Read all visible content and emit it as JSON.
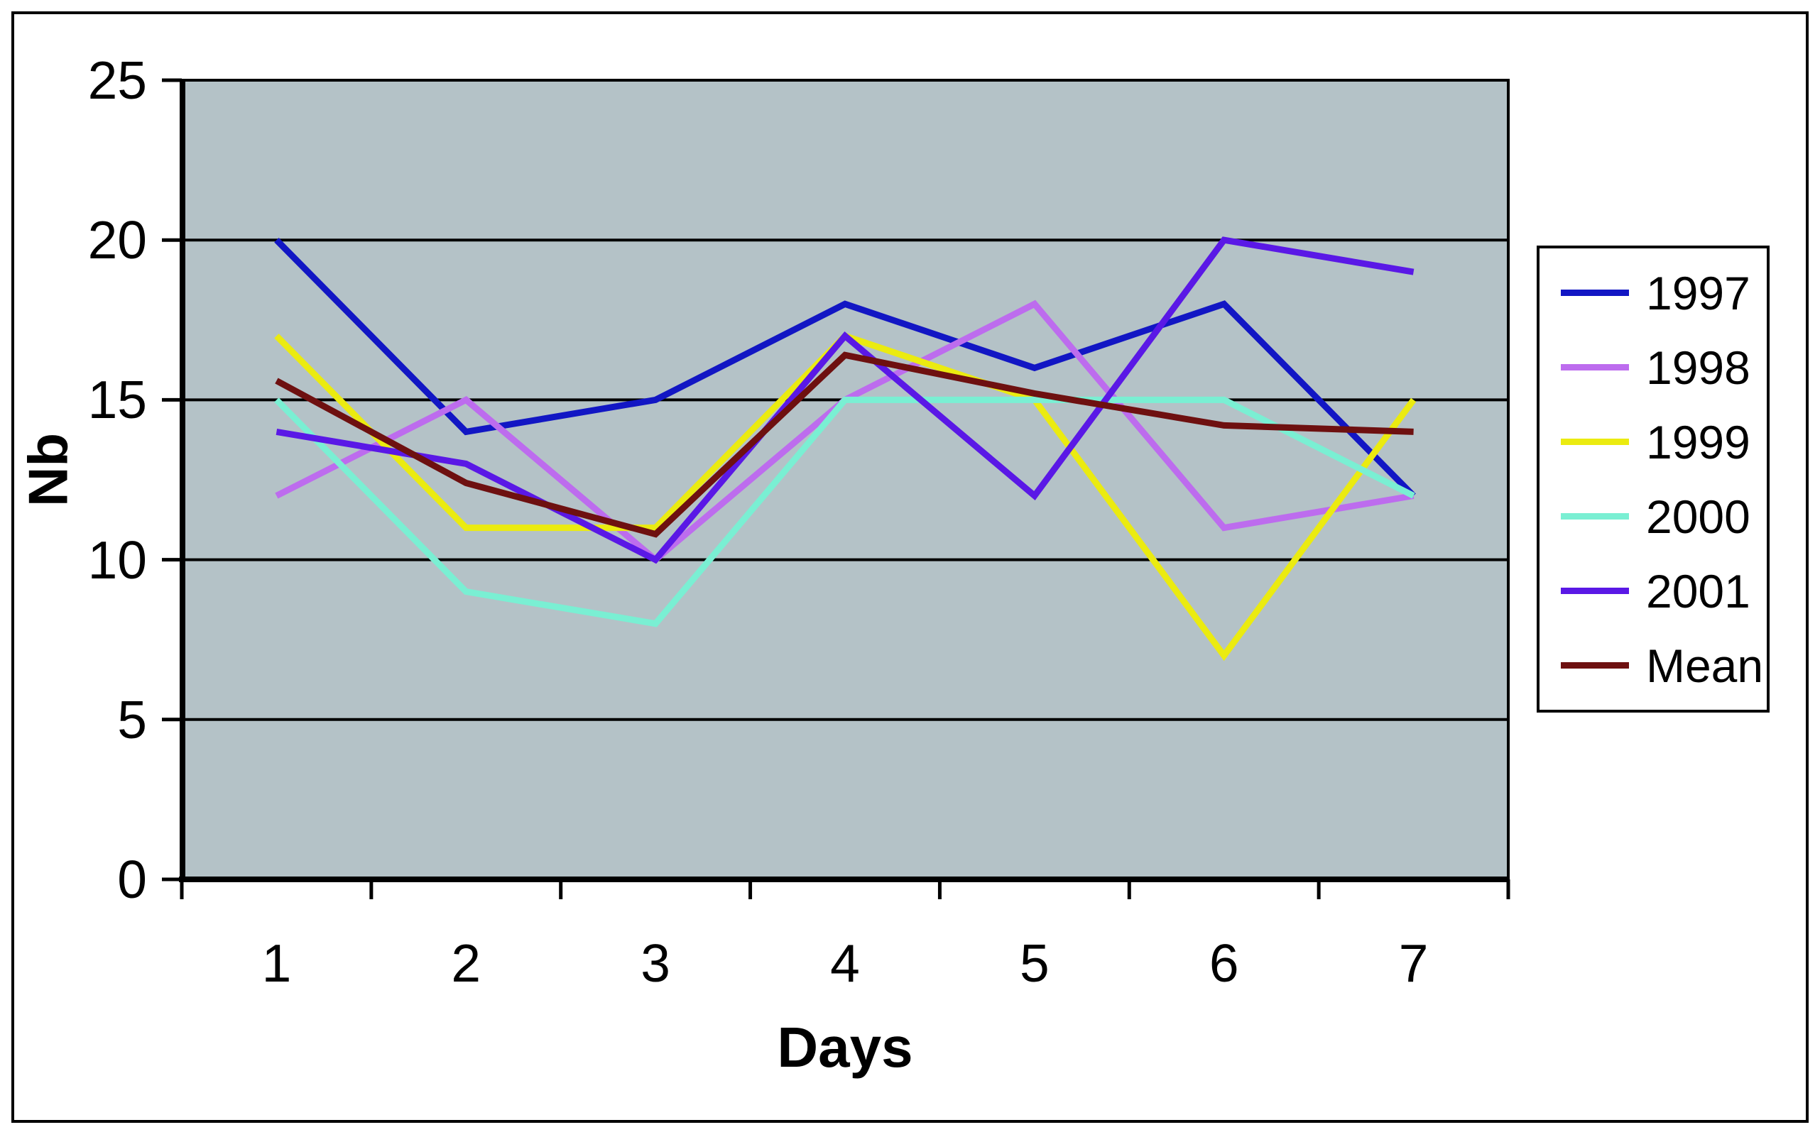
{
  "figure": {
    "background": "#ffffff",
    "border_color": "#000000"
  },
  "chart_data": {
    "type": "line",
    "title": "",
    "xlabel": "Days",
    "ylabel": "Nb",
    "x": [
      1,
      2,
      3,
      4,
      5,
      6,
      7
    ],
    "y_ticks": [
      0,
      5,
      10,
      15,
      20,
      25
    ],
    "ylim": [
      0,
      25
    ],
    "grid": "horizontal-only",
    "gridline_color": "#000000",
    "plot_background": "#b4c2c7",
    "legend_position": "right",
    "series": [
      {
        "name": "1997",
        "color": "#1216c4",
        "values": [
          20,
          14,
          15,
          18,
          16,
          18,
          12
        ]
      },
      {
        "name": "1998",
        "color": "#bd6cee",
        "values": [
          12,
          15,
          10,
          15,
          18,
          11,
          12
        ]
      },
      {
        "name": "1999",
        "color": "#ebeb10",
        "values": [
          17,
          11,
          11,
          17,
          15,
          7,
          15
        ]
      },
      {
        "name": "2000",
        "color": "#7aefd3",
        "values": [
          15,
          9,
          8,
          15,
          15,
          15,
          12
        ]
      },
      {
        "name": "2001",
        "color": "#5a18e6",
        "values": [
          14,
          13,
          10,
          17,
          12,
          20,
          19
        ]
      },
      {
        "name": "Mean",
        "color": "#6e1010",
        "values": [
          15.6,
          12.4,
          10.8,
          16.4,
          15.2,
          14.2,
          14
        ]
      }
    ]
  }
}
